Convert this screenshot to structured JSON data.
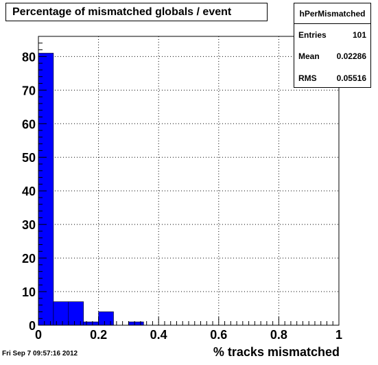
{
  "chart_data": {
    "type": "bar",
    "title": "Percentage of mismatched globals / event",
    "xlabel": "% tracks mismatched",
    "ylabel": "",
    "xlim": [
      0,
      1
    ],
    "ylim": [
      0,
      86
    ],
    "x_ticks": [
      "0",
      "0.2",
      "0.4",
      "0.6",
      "0.8",
      "1"
    ],
    "y_ticks": [
      "0",
      "10",
      "20",
      "30",
      "40",
      "50",
      "60",
      "70",
      "80"
    ],
    "bins": [
      {
        "x0": 0.0,
        "x1": 0.05,
        "value": 81
      },
      {
        "x0": 0.05,
        "x1": 0.1,
        "value": 7
      },
      {
        "x0": 0.1,
        "x1": 0.15,
        "value": 7
      },
      {
        "x0": 0.15,
        "x1": 0.2,
        "value": 1
      },
      {
        "x0": 0.2,
        "x1": 0.25,
        "value": 4
      },
      {
        "x0": 0.25,
        "x1": 0.3,
        "value": 0
      },
      {
        "x0": 0.3,
        "x1": 0.35,
        "value": 1
      }
    ],
    "grid": true,
    "bar_color": "#0000ff",
    "stats": {
      "name": "hPerMismatched",
      "entries_label": "Entries",
      "entries_value": "101",
      "mean_label": "Mean",
      "mean_value": "0.02286",
      "rms_label": "RMS",
      "rms_value": "0.05516",
      "placement": "top-right"
    }
  },
  "footer_date": "Fri Sep  7 09:57:16 2012"
}
